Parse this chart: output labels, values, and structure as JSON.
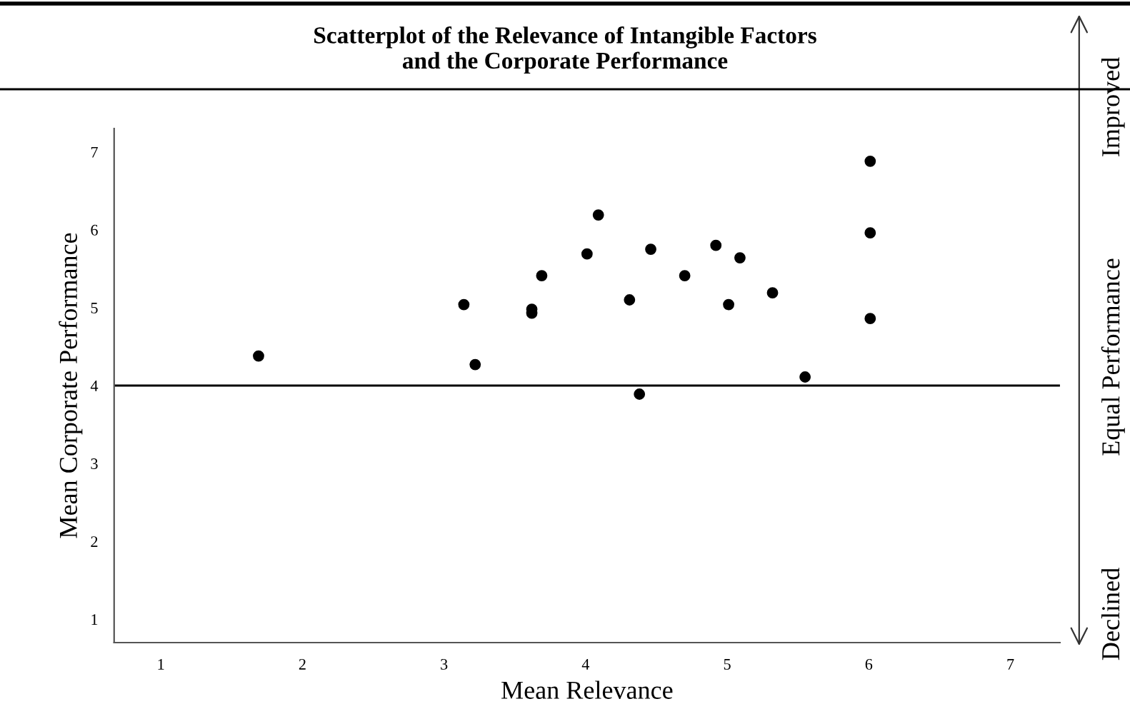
{
  "chart_data": {
    "type": "scatter",
    "title": "Scatterplot of the Relevance of Intangible Factors\nand the Corporate Performance",
    "xlabel": "Mean Relevance",
    "ylabel": "Mean Corporate Performance",
    "annotations": [
      "Improved",
      "Equal Performance",
      "Declined"
    ],
    "series": [
      {
        "color": "#000000",
        "x": [
          1.69,
          3.14,
          3.22,
          3.62,
          3.62,
          3.69,
          4.01,
          4.09,
          4.31,
          4.38,
          4.46,
          4.7,
          4.92,
          5.01,
          5.09,
          5.32,
          5.55,
          6.01,
          6.01,
          6.01
        ],
        "values": [
          4.38,
          5.04,
          4.27,
          4.98,
          4.93,
          5.41,
          5.69,
          6.19,
          5.1,
          3.89,
          5.75,
          5.41,
          5.8,
          5.04,
          5.64,
          5.19,
          4.11,
          6.88,
          5.96,
          4.86
        ]
      }
    ],
    "xlim": [
      0.67,
      7.35
    ],
    "ylim": [
      0.7,
      7.3
    ],
    "xticks": [
      1,
      2,
      3,
      4,
      5,
      6,
      7
    ],
    "yticks": [
      1,
      2,
      3,
      4,
      5,
      6,
      7
    ],
    "ref_lines": [
      {
        "axis": "y",
        "value": 4,
        "color": "#000000"
      }
    ],
    "marker": "circle",
    "grid": false,
    "legend": false
  }
}
